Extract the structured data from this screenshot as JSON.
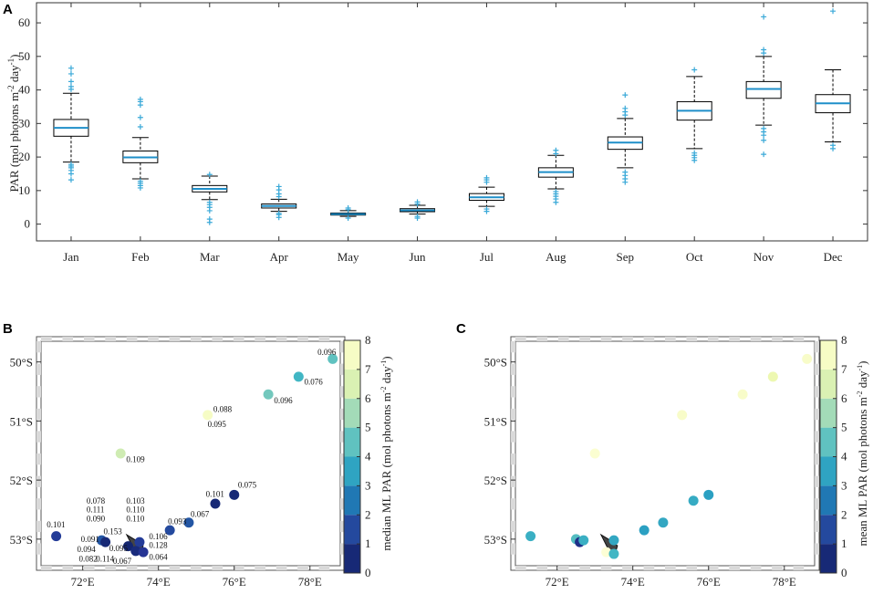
{
  "chart_data": [
    {
      "panel": "A",
      "type": "box",
      "title": "",
      "xlabel": "",
      "ylabel_main": "PAR (mol photons m",
      "ylabel_exp1": "-2",
      "ylabel_mid": " day",
      "ylabel_exp2": "-1",
      "ylabel_end": ")",
      "ylim": [
        -5,
        66
      ],
      "yticks": [
        0,
        10,
        20,
        30,
        40,
        50,
        60
      ],
      "categories": [
        "Jan",
        "Feb",
        "Mar",
        "Apr",
        "May",
        "Jun",
        "Jul",
        "Aug",
        "Sep",
        "Oct",
        "Nov",
        "Dec"
      ],
      "boxes": [
        {
          "q1": 26.2,
          "median": 28.7,
          "q3": 31.2,
          "whisker_low": 18.5,
          "whisker_high": 39.0,
          "outliers": [
            13.2,
            15.0,
            16.0,
            16.8,
            17.3,
            17.8,
            40.2,
            41.0,
            42.5,
            44.8,
            46.5
          ]
        },
        {
          "q1": 18.3,
          "median": 19.9,
          "q3": 21.8,
          "whisker_low": 13.5,
          "whisker_high": 25.8,
          "outliers": [
            10.8,
            11.5,
            12.2,
            12.8,
            29.0,
            31.8,
            35.5,
            36.5,
            37.2
          ]
        },
        {
          "q1": 9.6,
          "median": 10.5,
          "q3": 11.5,
          "whisker_low": 7.3,
          "whisker_high": 14.3,
          "outliers": [
            0.5,
            1.5,
            4.0,
            5.0,
            5.8,
            6.5,
            14.8
          ]
        },
        {
          "q1": 4.8,
          "median": 5.4,
          "q3": 6.0,
          "whisker_low": 3.8,
          "whisker_high": 7.4,
          "outliers": [
            2.0,
            2.8,
            3.2,
            8.2,
            9.0,
            10.2,
            11.2
          ]
        },
        {
          "q1": 2.7,
          "median": 3.0,
          "q3": 3.3,
          "whisker_low": 2.3,
          "whisker_high": 4.0,
          "outliers": [
            1.8,
            4.3,
            4.8
          ]
        },
        {
          "q1": 3.7,
          "median": 4.1,
          "q3": 4.6,
          "whisker_low": 3.0,
          "whisker_high": 5.6,
          "outliers": [
            1.8,
            2.3,
            6.0,
            6.6
          ]
        },
        {
          "q1": 7.1,
          "median": 8.0,
          "q3": 9.1,
          "whisker_low": 5.3,
          "whisker_high": 11.0,
          "outliers": [
            3.8,
            4.5,
            12.5,
            13.2,
            13.8
          ]
        },
        {
          "q1": 14.0,
          "median": 15.5,
          "q3": 16.8,
          "whisker_low": 10.5,
          "whisker_high": 20.5,
          "outliers": [
            6.5,
            7.5,
            8.3,
            9.0,
            9.7,
            21.0,
            22.0
          ]
        },
        {
          "q1": 22.3,
          "median": 24.3,
          "q3": 26.0,
          "whisker_low": 16.8,
          "whisker_high": 31.5,
          "outliers": [
            12.5,
            13.5,
            14.5,
            15.5,
            32.5,
            33.5,
            34.5,
            38.5
          ]
        },
        {
          "q1": 31.0,
          "median": 33.8,
          "q3": 36.5,
          "whisker_low": 22.5,
          "whisker_high": 44.0,
          "outliers": [
            19.0,
            19.8,
            20.5,
            21.2,
            46.0
          ]
        },
        {
          "q1": 37.5,
          "median": 40.3,
          "q3": 42.5,
          "whisker_low": 29.5,
          "whisker_high": 50.0,
          "outliers": [
            20.8,
            25.0,
            26.5,
            27.5,
            28.5,
            51.0,
            52.0,
            61.8
          ]
        },
        {
          "q1": 33.2,
          "median": 36.0,
          "q3": 38.6,
          "whisker_low": 24.5,
          "whisker_high": 46.0,
          "outliers": [
            22.5,
            23.5,
            63.5
          ]
        }
      ]
    },
    {
      "panel": "B",
      "type": "scatter",
      "colorbar_label_main": "median ML PAR (mol photons m",
      "colorbar_label_exp1": "-2",
      "colorbar_label_mid": " day",
      "colorbar_label_exp2": "-1",
      "colorbar_label_end": ")",
      "clim": [
        0,
        8
      ],
      "colorbar_ticks": [
        "0",
        "1",
        "2",
        "3",
        "4",
        "5",
        "6",
        "7",
        "8"
      ],
      "xlim": [
        70.9,
        78.8
      ],
      "ylim": [
        -53.45,
        -49.65
      ],
      "xticks": [
        72,
        74,
        76,
        78
      ],
      "xticklabels": [
        "72°E",
        "74°E",
        "76°E",
        "78°E"
      ],
      "yticks": [
        -50,
        -51,
        -52,
        -53
      ],
      "yticklabels": [
        "50°S",
        "51°S",
        "52°S",
        "53°S"
      ],
      "points": [
        {
          "lon": 78.6,
          "lat": -49.95,
          "value": 4.5
        },
        {
          "lon": 77.7,
          "lat": -50.25,
          "value": 4.0
        },
        {
          "lon": 76.9,
          "lat": -50.55,
          "value": 4.8
        },
        {
          "lon": 75.3,
          "lat": -50.9,
          "value": 7.5
        },
        {
          "lon": 73.0,
          "lat": -51.55,
          "value": 6.2
        },
        {
          "lon": 76.0,
          "lat": -52.25,
          "value": 0.5
        },
        {
          "lon": 75.5,
          "lat": -52.4,
          "value": 0.5
        },
        {
          "lon": 74.8,
          "lat": -52.72,
          "value": 1.8
        },
        {
          "lon": 74.3,
          "lat": -52.85,
          "value": 1.5
        },
        {
          "lon": 71.3,
          "lat": -52.95,
          "value": 1.2
        },
        {
          "lon": 72.5,
          "lat": -53.02,
          "value": 1.8
        },
        {
          "lon": 72.6,
          "lat": -53.05,
          "value": 0.5
        },
        {
          "lon": 73.5,
          "lat": -53.05,
          "value": 1.2
        },
        {
          "lon": 73.2,
          "lat": -53.12,
          "value": 0.4
        },
        {
          "lon": 73.4,
          "lat": -53.2,
          "value": 0.6
        },
        {
          "lon": 73.6,
          "lat": -53.22,
          "value": 1.0
        }
      ],
      "annotations": [
        {
          "text": "0.096",
          "lon": 78.2,
          "lat": -49.88
        },
        {
          "text": "0.076",
          "lon": 77.85,
          "lat": -50.38
        },
        {
          "text": "0.096",
          "lon": 77.05,
          "lat": -50.7
        },
        {
          "text": "0.088",
          "lon": 75.45,
          "lat": -50.85
        },
        {
          "text": "0.095",
          "lon": 75.3,
          "lat": -51.1
        },
        {
          "text": "0.109",
          "lon": 73.15,
          "lat": -51.7
        },
        {
          "text": "0.075",
          "lon": 76.1,
          "lat": -52.13
        },
        {
          "text": "0.101",
          "lon": 75.25,
          "lat": -52.28
        },
        {
          "text": "0.067",
          "lon": 74.85,
          "lat": -52.62
        },
        {
          "text": "0.093",
          "lon": 74.25,
          "lat": -52.75
        },
        {
          "text": "0.101",
          "lon": 71.05,
          "lat": -52.8
        },
        {
          "text": "0.078",
          "lon": 72.1,
          "lat": -52.4
        },
        {
          "text": "0.111",
          "lon": 72.1,
          "lat": -52.55
        },
        {
          "text": "0.090",
          "lon": 72.1,
          "lat": -52.7
        },
        {
          "text": "0.103",
          "lon": 73.15,
          "lat": -52.4
        },
        {
          "text": "0.110",
          "lon": 73.15,
          "lat": -52.55
        },
        {
          "text": "0.110",
          "lon": 73.15,
          "lat": -52.7
        },
        {
          "text": "0.153",
          "lon": 72.55,
          "lat": -52.92
        },
        {
          "text": "0.091",
          "lon": 71.95,
          "lat": -53.05
        },
        {
          "text": "0.106",
          "lon": 73.75,
          "lat": -53.0
        },
        {
          "text": "0.128",
          "lon": 73.75,
          "lat": -53.15
        },
        {
          "text": "0.094",
          "lon": 71.85,
          "lat": -53.22
        },
        {
          "text": "0.095",
          "lon": 72.7,
          "lat": -53.2
        },
        {
          "text": "0.064",
          "lon": 73.75,
          "lat": -53.35
        },
        {
          "text": "0.082",
          "lon": 71.9,
          "lat": -53.38
        },
        {
          "text": "0.114",
          "lon": 72.35,
          "lat": -53.38
        },
        {
          "text": "0.067",
          "lon": 72.8,
          "lat": -53.42
        }
      ]
    },
    {
      "panel": "C",
      "type": "scatter",
      "colorbar_label_main": "mean ML PAR (mol photons m",
      "colorbar_label_exp1": "-2",
      "colorbar_label_mid": " day",
      "colorbar_label_exp2": "-1",
      "colorbar_label_end": ")",
      "clim": [
        0,
        8
      ],
      "colorbar_ticks": [
        "0",
        "1",
        "2",
        "3",
        "4",
        "5",
        "6",
        "7",
        "8"
      ],
      "xlim": [
        70.9,
        78.8
      ],
      "ylim": [
        -53.45,
        -49.65
      ],
      "xticks": [
        72,
        74,
        76,
        78
      ],
      "xticklabels": [
        "72°E",
        "74°E",
        "76°E",
        "78°E"
      ],
      "yticks": [
        -50,
        -51,
        -52,
        -53
      ],
      "yticklabels": [
        "50°S",
        "51°S",
        "52°S",
        "53°S"
      ],
      "points": [
        {
          "lon": 78.6,
          "lat": -49.95,
          "value": 7.6
        },
        {
          "lon": 77.7,
          "lat": -50.25,
          "value": 7.0
        },
        {
          "lon": 76.9,
          "lat": -50.55,
          "value": 7.6
        },
        {
          "lon": 75.3,
          "lat": -50.9,
          "value": 7.6
        },
        {
          "lon": 73.0,
          "lat": -51.55,
          "value": 7.8
        },
        {
          "lon": 76.0,
          "lat": -52.25,
          "value": 3.4
        },
        {
          "lon": 75.6,
          "lat": -52.35,
          "value": 3.7
        },
        {
          "lon": 74.8,
          "lat": -52.72,
          "value": 3.6
        },
        {
          "lon": 74.3,
          "lat": -52.85,
          "value": 3.4
        },
        {
          "lon": 71.3,
          "lat": -52.95,
          "value": 3.8
        },
        {
          "lon": 72.5,
          "lat": -53.0,
          "value": 4.3
        },
        {
          "lon": 72.6,
          "lat": -53.05,
          "value": 0.8
        },
        {
          "lon": 72.7,
          "lat": -53.02,
          "value": 3.8
        },
        {
          "lon": 73.5,
          "lat": -53.02,
          "value": 3.6
        },
        {
          "lon": 73.3,
          "lat": -53.22,
          "value": 7.9
        },
        {
          "lon": 73.5,
          "lat": -53.25,
          "value": 4.0
        }
      ]
    }
  ]
}
